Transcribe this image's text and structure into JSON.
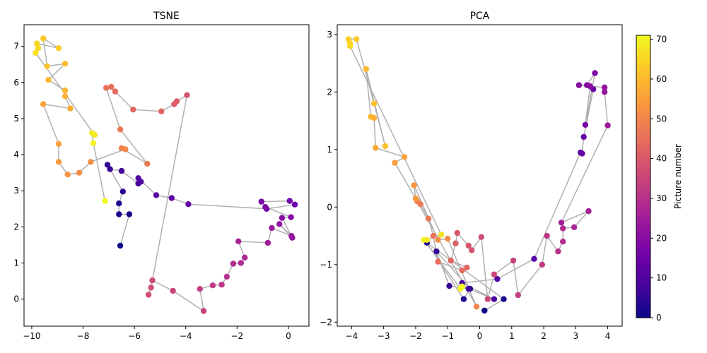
{
  "chart_data": [
    {
      "type": "scatter",
      "title": "TSNE",
      "xlabel": "",
      "ylabel": "",
      "xlim": [
        -10.3,
        0.8
      ],
      "ylim": [
        -0.75,
        7.6
      ],
      "xticks": [
        -10,
        -8,
        -6,
        -4,
        -2,
        0
      ],
      "yticks": [
        0,
        1,
        2,
        3,
        4,
        5,
        6,
        7
      ],
      "connect_points": true,
      "line_color": "#b0b0b0",
      "colormap": "plasma",
      "points": [
        {
          "x": -6.55,
          "y": 1.48,
          "c": 0
        },
        {
          "x": -6.2,
          "y": 2.35,
          "c": 1
        },
        {
          "x": -6.6,
          "y": 2.35,
          "c": 2
        },
        {
          "x": -6.6,
          "y": 2.65,
          "c": 3
        },
        {
          "x": -6.45,
          "y": 2.98,
          "c": 4
        },
        {
          "x": -7.05,
          "y": 3.72,
          "c": 5
        },
        {
          "x": -6.95,
          "y": 3.6,
          "c": 6
        },
        {
          "x": -6.5,
          "y": 3.55,
          "c": 7
        },
        {
          "x": -5.85,
          "y": 3.2,
          "c": 8
        },
        {
          "x": -5.75,
          "y": 3.25,
          "c": 9
        },
        {
          "x": -5.85,
          "y": 3.35,
          "c": 10
        },
        {
          "x": -5.15,
          "y": 2.88,
          "c": 11
        },
        {
          "x": -4.55,
          "y": 2.8,
          "c": 12
        },
        {
          "x": -3.9,
          "y": 2.63,
          "c": 13
        },
        {
          "x": -0.85,
          "y": 2.5,
          "c": 14
        },
        {
          "x": 0.25,
          "y": 2.62,
          "c": 15
        },
        {
          "x": 0.05,
          "y": 2.72,
          "c": 16
        },
        {
          "x": -1.05,
          "y": 2.7,
          "c": 17
        },
        {
          "x": -0.9,
          "y": 2.55,
          "c": 18
        },
        {
          "x": 0.1,
          "y": 2.27,
          "c": 19
        },
        {
          "x": -0.25,
          "y": 2.25,
          "c": 20
        },
        {
          "x": 0.15,
          "y": 1.7,
          "c": 21
        },
        {
          "x": -0.35,
          "y": 2.08,
          "c": 22
        },
        {
          "x": 0.12,
          "y": 1.75,
          "c": 23
        },
        {
          "x": -0.65,
          "y": 1.97,
          "c": 24
        },
        {
          "x": -0.8,
          "y": 1.56,
          "c": 25
        },
        {
          "x": -1.95,
          "y": 1.6,
          "c": 26
        },
        {
          "x": -1.7,
          "y": 1.15,
          "c": 27
        },
        {
          "x": -1.85,
          "y": 1.0,
          "c": 28
        },
        {
          "x": -2.15,
          "y": 0.98,
          "c": 29
        },
        {
          "x": -2.4,
          "y": 0.62,
          "c": 30
        },
        {
          "x": -2.6,
          "y": 0.4,
          "c": 31
        },
        {
          "x": -2.95,
          "y": 0.38,
          "c": 32
        },
        {
          "x": -3.45,
          "y": 0.28,
          "c": 33
        },
        {
          "x": -3.3,
          "y": -0.33,
          "c": 34
        },
        {
          "x": -4.5,
          "y": 0.23,
          "c": 35
        },
        {
          "x": -5.3,
          "y": 0.52,
          "c": 36
        },
        {
          "x": -5.45,
          "y": 0.12,
          "c": 37
        },
        {
          "x": -5.35,
          "y": 0.32,
          "c": 38
        },
        {
          "x": -3.95,
          "y": 5.65,
          "c": 39
        },
        {
          "x": -4.35,
          "y": 5.48,
          "c": 40
        },
        {
          "x": -4.45,
          "y": 5.4,
          "c": 41
        },
        {
          "x": -4.95,
          "y": 5.2,
          "c": 42
        },
        {
          "x": -6.05,
          "y": 5.25,
          "c": 43
        },
        {
          "x": -6.75,
          "y": 5.75,
          "c": 44
        },
        {
          "x": -6.9,
          "y": 5.88,
          "c": 45
        },
        {
          "x": -7.1,
          "y": 5.85,
          "c": 46
        },
        {
          "x": -6.55,
          "y": 4.7,
          "c": 47
        },
        {
          "x": -5.5,
          "y": 3.75,
          "c": 48
        },
        {
          "x": -6.5,
          "y": 4.18,
          "c": 49
        },
        {
          "x": -6.35,
          "y": 4.15,
          "c": 50
        },
        {
          "x": -7.7,
          "y": 3.8,
          "c": 51
        },
        {
          "x": -8.15,
          "y": 3.5,
          "c": 52
        },
        {
          "x": -8.6,
          "y": 3.45,
          "c": 53
        },
        {
          "x": -8.95,
          "y": 3.8,
          "c": 54
        },
        {
          "x": -8.95,
          "y": 4.3,
          "c": 55
        },
        {
          "x": -9.55,
          "y": 5.4,
          "c": 56
        },
        {
          "x": -8.5,
          "y": 5.28,
          "c": 57
        },
        {
          "x": -8.7,
          "y": 5.62,
          "c": 58
        },
        {
          "x": -8.7,
          "y": 5.78,
          "c": 59
        },
        {
          "x": -9.35,
          "y": 6.07,
          "c": 60
        },
        {
          "x": -8.7,
          "y": 6.52,
          "c": 61
        },
        {
          "x": -9.4,
          "y": 6.45,
          "c": 62
        },
        {
          "x": -9.55,
          "y": 7.22,
          "c": 63
        },
        {
          "x": -8.95,
          "y": 6.95,
          "c": 64
        },
        {
          "x": -9.8,
          "y": 7.08,
          "c": 65
        },
        {
          "x": -9.75,
          "y": 6.95,
          "c": 66
        },
        {
          "x": -9.85,
          "y": 6.82,
          "c": 67
        },
        {
          "x": -7.55,
          "y": 4.55,
          "c": 68
        },
        {
          "x": -7.65,
          "y": 4.6,
          "c": 69
        },
        {
          "x": -7.6,
          "y": 4.32,
          "c": 70
        },
        {
          "x": -7.15,
          "y": 2.72,
          "c": 71
        }
      ]
    },
    {
      "type": "scatter",
      "title": "PCA",
      "xlabel": "",
      "ylabel": "",
      "xlim": [
        -4.45,
        4.45
      ],
      "ylim": [
        -2.07,
        3.17
      ],
      "xticks": [
        -4,
        -3,
        -2,
        -1,
        0,
        1,
        2,
        3,
        4
      ],
      "yticks": [
        -2,
        -1,
        0,
        1,
        2,
        3
      ],
      "connect_points": true,
      "line_color": "#b0b0b0",
      "colormap": "plasma",
      "points": [
        {
          "x": 0.15,
          "y": -1.8,
          "c": 0
        },
        {
          "x": 0.75,
          "y": -1.6,
          "c": 1
        },
        {
          "x": -1.65,
          "y": -0.62,
          "c": 2
        },
        {
          "x": -0.5,
          "y": -1.6,
          "c": 3
        },
        {
          "x": -0.3,
          "y": -1.42,
          "c": 4
        },
        {
          "x": -1.35,
          "y": -0.77,
          "c": 5
        },
        {
          "x": -0.95,
          "y": -1.37,
          "c": 6
        },
        {
          "x": -0.35,
          "y": -1.42,
          "c": 7
        },
        {
          "x": 0.45,
          "y": -1.6,
          "c": 8
        },
        {
          "x": -0.55,
          "y": -1.32,
          "c": 9
        },
        {
          "x": 0.55,
          "y": -1.25,
          "c": 10
        },
        {
          "x": 1.7,
          "y": -0.9,
          "c": 11
        },
        {
          "x": 3.15,
          "y": 0.95,
          "c": 12
        },
        {
          "x": 3.2,
          "y": 0.93,
          "c": 13
        },
        {
          "x": 3.25,
          "y": 1.22,
          "c": 14
        },
        {
          "x": 3.55,
          "y": 2.05,
          "c": 15
        },
        {
          "x": 3.45,
          "y": 2.1,
          "c": 16
        },
        {
          "x": 3.3,
          "y": 1.43,
          "c": 17
        },
        {
          "x": 3.6,
          "y": 2.33,
          "c": 18
        },
        {
          "x": 3.35,
          "y": 2.12,
          "c": 19
        },
        {
          "x": 3.1,
          "y": 2.12,
          "c": 20
        },
        {
          "x": 3.45,
          "y": 2.1,
          "c": 21
        },
        {
          "x": 3.9,
          "y": 2.08,
          "c": 22
        },
        {
          "x": 3.9,
          "y": 2.0,
          "c": 23
        },
        {
          "x": 4.0,
          "y": 1.42,
          "c": 24
        },
        {
          "x": 2.55,
          "y": -0.27,
          "c": 25
        },
        {
          "x": 3.4,
          "y": -0.07,
          "c": 26
        },
        {
          "x": 2.95,
          "y": -0.35,
          "c": 27
        },
        {
          "x": 2.6,
          "y": -0.37,
          "c": 28
        },
        {
          "x": 2.6,
          "y": -0.6,
          "c": 29
        },
        {
          "x": 2.45,
          "y": -0.77,
          "c": 30
        },
        {
          "x": 2.1,
          "y": -0.5,
          "c": 31
        },
        {
          "x": 1.95,
          "y": -1.0,
          "c": 32
        },
        {
          "x": 1.2,
          "y": -1.53,
          "c": 33
        },
        {
          "x": 1.05,
          "y": -0.93,
          "c": 34
        },
        {
          "x": 0.45,
          "y": -1.17,
          "c": 35
        },
        {
          "x": 0.25,
          "y": -1.6,
          "c": 36
        },
        {
          "x": 0.05,
          "y": -0.52,
          "c": 37
        },
        {
          "x": -0.25,
          "y": -0.75,
          "c": 38
        },
        {
          "x": -0.35,
          "y": -0.67,
          "c": 39
        },
        {
          "x": -0.7,
          "y": -0.45,
          "c": 40
        },
        {
          "x": -0.75,
          "y": -0.63,
          "c": 41
        },
        {
          "x": -0.9,
          "y": -0.93,
          "c": 42
        },
        {
          "x": -0.4,
          "y": -1.05,
          "c": 43
        },
        {
          "x": -0.55,
          "y": -1.1,
          "c": 44
        },
        {
          "x": -1.3,
          "y": -0.95,
          "c": 45
        },
        {
          "x": -1.45,
          "y": -0.5,
          "c": 46
        },
        {
          "x": -1.6,
          "y": -0.2,
          "c": 47
        },
        {
          "x": -1.85,
          "y": 0.05,
          "c": 48
        },
        {
          "x": -1.95,
          "y": 0.1,
          "c": 49
        },
        {
          "x": -0.1,
          "y": -1.73,
          "c": 50
        },
        {
          "x": -1.0,
          "y": -0.55,
          "c": 51
        },
        {
          "x": -1.3,
          "y": -0.57,
          "c": 52
        },
        {
          "x": -2.05,
          "y": 0.38,
          "c": 53
        },
        {
          "x": -2.0,
          "y": 0.15,
          "c": 54
        },
        {
          "x": -2.65,
          "y": 0.77,
          "c": 55
        },
        {
          "x": -2.35,
          "y": 0.87,
          "c": 56
        },
        {
          "x": -3.25,
          "y": 1.03,
          "c": 57
        },
        {
          "x": -3.3,
          "y": 1.55,
          "c": 58
        },
        {
          "x": -3.4,
          "y": 1.57,
          "c": 59
        },
        {
          "x": -3.55,
          "y": 2.4,
          "c": 60
        },
        {
          "x": -2.95,
          "y": 1.06,
          "c": 61
        },
        {
          "x": -3.3,
          "y": 1.8,
          "c": 62
        },
        {
          "x": -3.85,
          "y": 2.92,
          "c": 63
        },
        {
          "x": -4.1,
          "y": 2.92,
          "c": 64
        },
        {
          "x": -4.05,
          "y": 2.85,
          "c": 65
        },
        {
          "x": -4.05,
          "y": 2.8,
          "c": 66
        },
        {
          "x": -1.2,
          "y": -0.48,
          "c": 67
        },
        {
          "x": -1.65,
          "y": -0.57,
          "c": 68
        },
        {
          "x": -1.75,
          "y": -0.57,
          "c": 69
        },
        {
          "x": -0.6,
          "y": -1.42,
          "c": 70
        },
        {
          "x": -0.55,
          "y": -1.38,
          "c": 71
        }
      ]
    }
  ],
  "colorbar": {
    "label": "Picture number",
    "min": 0,
    "max": 71,
    "ticks": [
      0,
      10,
      20,
      30,
      40,
      50,
      60,
      70
    ],
    "colormap": "plasma"
  },
  "colors": {
    "plasma_stops": [
      "#0d0887",
      "#46039f",
      "#7201a8",
      "#9c179e",
      "#bd3786",
      "#d8576b",
      "#ed7953",
      "#fb9f3a",
      "#fdca26",
      "#f0f921"
    ]
  }
}
